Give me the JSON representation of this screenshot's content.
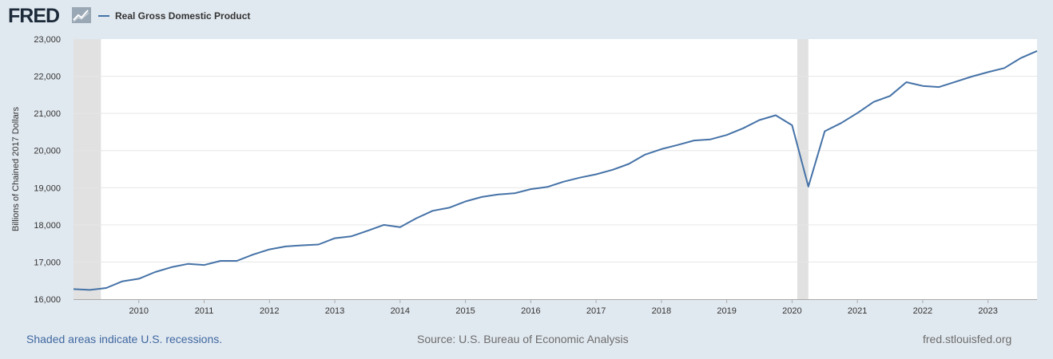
{
  "header": {
    "logo": "FRED",
    "logo_mark_icon": "fred-trend-icon"
  },
  "chart_data": {
    "type": "line",
    "title": "",
    "xlabel": "",
    "ylabel": "Billions of Chained 2017 Dollars",
    "ylim": [
      16000,
      23000
    ],
    "xlim": [
      2009.0,
      2023.75
    ],
    "y_ticks": [
      16000,
      17000,
      18000,
      19000,
      20000,
      21000,
      22000,
      23000
    ],
    "y_tick_labels": [
      "16,000",
      "17,000",
      "18,000",
      "19,000",
      "20,000",
      "21,000",
      "22,000",
      "23,000"
    ],
    "x_ticks": [
      2010,
      2011,
      2012,
      2013,
      2014,
      2015,
      2016,
      2017,
      2018,
      2019,
      2020,
      2021,
      2022,
      2023
    ],
    "x_tick_labels": [
      "2010",
      "2011",
      "2012",
      "2013",
      "2014",
      "2015",
      "2016",
      "2017",
      "2018",
      "2019",
      "2020",
      "2021",
      "2022",
      "2023"
    ],
    "grid": true,
    "legend_position": "top-left",
    "line_color": "#4572a7",
    "recession_color": "#e1e1e1",
    "recessions": [
      [
        2009.0,
        2009.42
      ],
      [
        2020.08,
        2020.25
      ]
    ],
    "series": [
      {
        "name": "Real Gross Domestic Product",
        "x": [
          "2009-01-01",
          "2009-04-01",
          "2009-07-01",
          "2009-10-01",
          "2010-01-01",
          "2010-04-01",
          "2010-07-01",
          "2010-10-01",
          "2011-01-01",
          "2011-04-01",
          "2011-07-01",
          "2011-10-01",
          "2012-01-01",
          "2012-04-01",
          "2012-07-01",
          "2012-10-01",
          "2013-01-01",
          "2013-04-01",
          "2013-07-01",
          "2013-10-01",
          "2014-01-01",
          "2014-04-01",
          "2014-07-01",
          "2014-10-01",
          "2015-01-01",
          "2015-04-01",
          "2015-07-01",
          "2015-10-01",
          "2016-01-01",
          "2016-04-01",
          "2016-07-01",
          "2016-10-01",
          "2017-01-01",
          "2017-04-01",
          "2017-07-01",
          "2017-10-01",
          "2018-01-01",
          "2018-04-01",
          "2018-07-01",
          "2018-10-01",
          "2019-01-01",
          "2019-04-01",
          "2019-07-01",
          "2019-10-01",
          "2020-01-01",
          "2020-04-01",
          "2020-07-01",
          "2020-10-01",
          "2021-01-01",
          "2021-04-01",
          "2021-07-01",
          "2021-10-01",
          "2022-01-01",
          "2022-04-01",
          "2022-07-01",
          "2022-10-01",
          "2023-01-01",
          "2023-04-01",
          "2023-07-01",
          "2023-10-01"
        ],
        "values": [
          16270,
          16250,
          16300,
          16480,
          16550,
          16730,
          16860,
          16950,
          16920,
          17030,
          17030,
          17200,
          17340,
          17420,
          17450,
          17470,
          17640,
          17690,
          17840,
          18000,
          17940,
          18180,
          18380,
          18460,
          18630,
          18750,
          18820,
          18850,
          18960,
          19020,
          19160,
          19270,
          19360,
          19480,
          19640,
          19890,
          20040,
          20150,
          20270,
          20300,
          20420,
          20600,
          20820,
          20950,
          20680,
          19030,
          20520,
          20740,
          21010,
          21310,
          21470,
          21840,
          21740,
          21710,
          21850,
          21990,
          22110,
          22220,
          22490,
          22680
        ]
      }
    ]
  },
  "footer": {
    "recession_note": "Shaded areas indicate U.S. recessions.",
    "source": "Source: U.S. Bureau of Economic Analysis",
    "site": "fred.stlouisfed.org"
  }
}
